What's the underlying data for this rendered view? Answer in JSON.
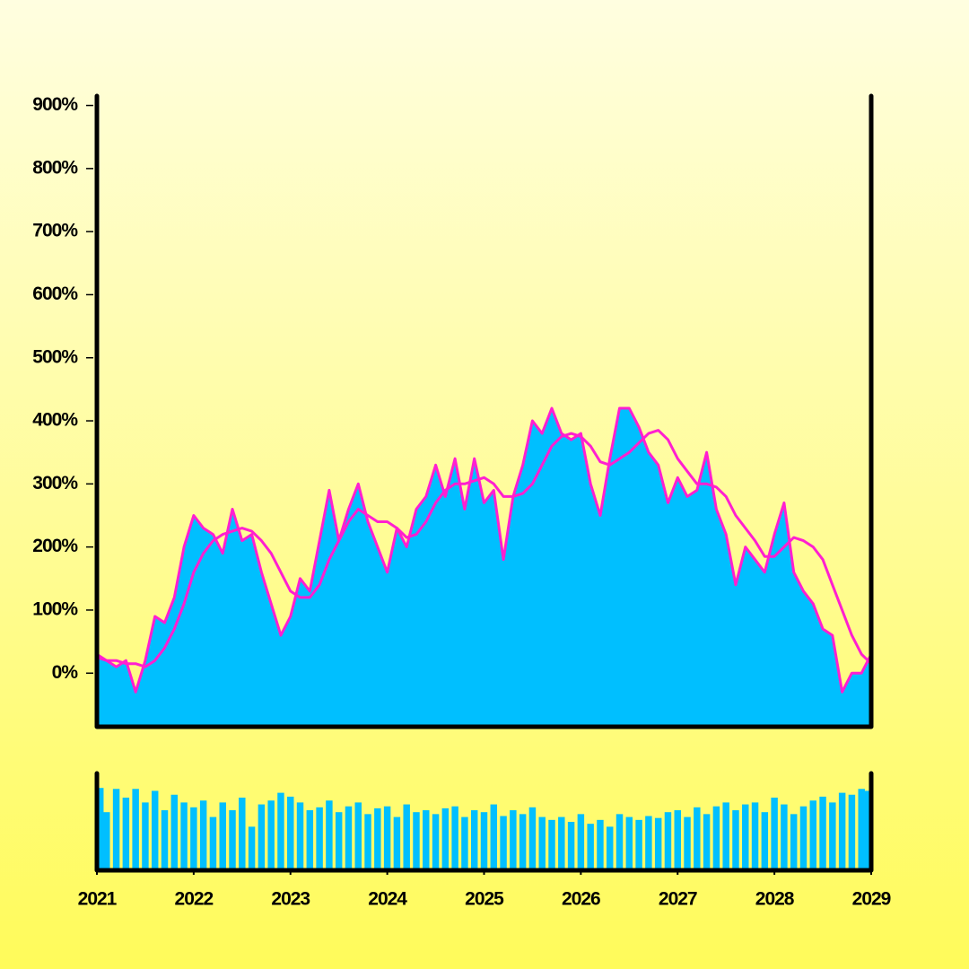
{
  "chart_data": [
    {
      "type": "area",
      "x": [
        2021.0,
        2021.1,
        2021.2,
        2021.3,
        2021.4,
        2021.5,
        2021.6,
        2021.7,
        2021.8,
        2021.9,
        2022.0,
        2022.1,
        2022.2,
        2022.3,
        2022.4,
        2022.5,
        2022.6,
        2022.7,
        2022.8,
        2022.9,
        2023.0,
        2023.1,
        2023.2,
        2023.3,
        2023.4,
        2023.5,
        2023.6,
        2023.7,
        2023.8,
        2023.9,
        2024.0,
        2024.1,
        2024.2,
        2024.3,
        2024.4,
        2024.5,
        2024.6,
        2024.7,
        2024.8,
        2024.9,
        2025.0,
        2025.1,
        2025.2,
        2025.3,
        2025.4,
        2025.5,
        2025.6,
        2025.7,
        2025.8,
        2025.9,
        2026.0,
        2026.1,
        2026.2,
        2026.3,
        2026.4,
        2026.5,
        2026.6,
        2026.7,
        2026.8,
        2026.9,
        2027.0,
        2027.1,
        2027.2,
        2027.3,
        2027.4,
        2027.5,
        2027.6,
        2027.7,
        2027.8,
        2027.9,
        2028.0,
        2028.1,
        2028.2,
        2028.3,
        2028.4,
        2028.5,
        2028.6,
        2028.7,
        2028.8,
        2028.9,
        2029.0
      ],
      "series": [
        {
          "style": "area",
          "color": "#00bfff",
          "line_color": "#ff1fd0",
          "values": [
            30,
            20,
            10,
            20,
            -30,
            20,
            90,
            80,
            120,
            200,
            250,
            230,
            220,
            190,
            260,
            210,
            220,
            160,
            110,
            60,
            90,
            150,
            130,
            210,
            290,
            210,
            260,
            300,
            240,
            200,
            160,
            230,
            200,
            260,
            280,
            330,
            280,
            340,
            260,
            340,
            270,
            290,
            180,
            280,
            330,
            400,
            380,
            420,
            380,
            370,
            380,
            300,
            250,
            340,
            420,
            420,
            390,
            350,
            330,
            270,
            310,
            280,
            290,
            350,
            260,
            220,
            140,
            200,
            180,
            160,
            220,
            270,
            160,
            130,
            110,
            70,
            60,
            -30,
            0,
            0,
            30
          ]
        },
        {
          "style": "line",
          "color": "#ff1fd0",
          "values": [
            25,
            20,
            20,
            15,
            15,
            10,
            20,
            40,
            70,
            110,
            160,
            190,
            210,
            220,
            225,
            230,
            225,
            210,
            190,
            160,
            130,
            120,
            120,
            140,
            180,
            210,
            240,
            260,
            250,
            240,
            240,
            230,
            215,
            220,
            240,
            270,
            290,
            300,
            300,
            305,
            310,
            300,
            280,
            280,
            285,
            300,
            330,
            360,
            375,
            380,
            375,
            360,
            335,
            330,
            340,
            350,
            365,
            380,
            385,
            370,
            340,
            320,
            300,
            300,
            295,
            280,
            250,
            230,
            210,
            185,
            185,
            200,
            215,
            210,
            200,
            180,
            140,
            100,
            60,
            30,
            15
          ]
        }
      ],
      "xlim": [
        2021,
        2029
      ],
      "ylim": [
        -85,
        915
      ],
      "yticks": [
        {
          "value": 0,
          "label": "0%"
        },
        {
          "value": 100,
          "label": "100%"
        },
        {
          "value": 200,
          "label": "200%"
        },
        {
          "value": 300,
          "label": "300%"
        },
        {
          "value": 400,
          "label": "400%"
        },
        {
          "value": 500,
          "label": "500%"
        },
        {
          "value": 600,
          "label": "600%"
        },
        {
          "value": 700,
          "label": "700%"
        },
        {
          "value": 800,
          "label": "800%"
        },
        {
          "value": 900,
          "label": "900%"
        }
      ]
    },
    {
      "type": "bar",
      "x": [
        2021.0,
        2021.1,
        2021.2,
        2021.3,
        2021.4,
        2021.5,
        2021.6,
        2021.7,
        2021.8,
        2021.9,
        2022.0,
        2022.1,
        2022.2,
        2022.3,
        2022.4,
        2022.5,
        2022.6,
        2022.7,
        2022.8,
        2022.9,
        2023.0,
        2023.1,
        2023.2,
        2023.3,
        2023.4,
        2023.5,
        2023.6,
        2023.7,
        2023.8,
        2023.9,
        2024.0,
        2024.1,
        2024.2,
        2024.3,
        2024.4,
        2024.5,
        2024.6,
        2024.7,
        2024.8,
        2024.9,
        2025.0,
        2025.1,
        2025.2,
        2025.3,
        2025.4,
        2025.5,
        2025.6,
        2025.7,
        2025.8,
        2025.9,
        2026.0,
        2026.1,
        2026.2,
        2026.3,
        2026.4,
        2026.5,
        2026.6,
        2026.7,
        2026.8,
        2026.9,
        2027.0,
        2027.1,
        2027.2,
        2027.3,
        2027.4,
        2027.5,
        2027.6,
        2027.7,
        2027.8,
        2027.9,
        2028.0,
        2028.1,
        2028.2,
        2028.3,
        2028.4,
        2028.5,
        2028.6,
        2028.7,
        2028.8,
        2028.9,
        2029.0
      ],
      "values": [
        85,
        60,
        84,
        75,
        84,
        70,
        82,
        62,
        78,
        70,
        65,
        72,
        55,
        70,
        62,
        75,
        45,
        68,
        72,
        80,
        76,
        70,
        62,
        65,
        72,
        60,
        66,
        70,
        58,
        64,
        66,
        55,
        68,
        60,
        62,
        58,
        64,
        66,
        55,
        62,
        60,
        68,
        56,
        62,
        58,
        65,
        55,
        52,
        55,
        50,
        58,
        48,
        52,
        45,
        58,
        55,
        52,
        56,
        54,
        60,
        62,
        55,
        65,
        58,
        66,
        70,
        62,
        68,
        70,
        60,
        75,
        68,
        58,
        66,
        72,
        76,
        70,
        80,
        78,
        84,
        82
      ],
      "color": "#00bfff",
      "xlim": [
        2021,
        2029
      ],
      "ylim": [
        0,
        100
      ],
      "xticks": [
        2021,
        2022,
        2023,
        2024,
        2025,
        2026,
        2027,
        2028,
        2029
      ]
    }
  ]
}
